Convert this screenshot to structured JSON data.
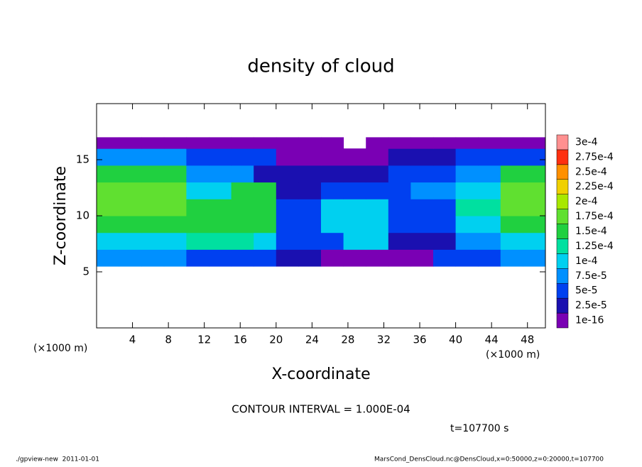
{
  "chart_data": {
    "type": "heatmap",
    "title": "density of cloud",
    "xlabel": "X-coordinate",
    "ylabel": "Z-coordinate",
    "x_unit": "(×1000 m)",
    "y_unit": "(×1000 m)",
    "xlim": [
      0,
      50
    ],
    "ylim": [
      0,
      20
    ],
    "xticks": [
      4,
      8,
      12,
      16,
      20,
      24,
      28,
      32,
      36,
      40,
      44,
      48
    ],
    "yticks": [
      5,
      10,
      15
    ],
    "x_edges": [
      0,
      2.5,
      5,
      7.5,
      10,
      12.5,
      15,
      17.5,
      20,
      22.5,
      25,
      27.5,
      30,
      32.5,
      35,
      37.5,
      40,
      42.5,
      45,
      47.5,
      50
    ],
    "z_edges": [
      5.5,
      7,
      8.5,
      10,
      11.5,
      13,
      14.5,
      16,
      17
    ],
    "values": [
      [
        8e-05,
        8e-05,
        8e-05,
        8e-05,
        7e-05,
        7e-05,
        7e-05,
        7e-05,
        3e-05,
        3e-05,
        2e-05,
        2e-05,
        2e-05,
        2e-05,
        2e-05,
        5e-05,
        5e-05,
        5e-05,
        8e-05,
        8e-05
      ],
      [
        0.00011,
        0.00011,
        0.00011,
        0.00011,
        0.00013,
        0.00013,
        0.00013,
        0.00012,
        5e-05,
        5e-05,
        5e-05,
        0.0001,
        0.0001,
        3e-05,
        3e-05,
        3e-05,
        8e-05,
        8e-05,
        0.0001,
        0.0001
      ],
      [
        0.00016,
        0.00016,
        0.00016,
        0.00016,
        0.00015,
        0.00015,
        0.00015,
        0.00015,
        5e-05,
        5e-05,
        0.00011,
        0.00011,
        0.00011,
        5e-05,
        6e-05,
        6e-05,
        0.00012,
        0.00012,
        0.00015,
        0.00015
      ],
      [
        0.00018,
        0.00018,
        0.00018,
        0.00018,
        0.00015,
        0.00015,
        0.00017,
        0.00017,
        7e-05,
        7e-05,
        0.00011,
        0.00011,
        0.00011,
        6e-05,
        6e-05,
        6e-05,
        0.00013,
        0.00013,
        0.00018,
        0.00018
      ],
      [
        0.00019,
        0.00019,
        0.00019,
        0.00019,
        0.0001,
        0.0001,
        0.00016,
        0.00016,
        4e-05,
        4e-05,
        6e-05,
        6e-05,
        6e-05,
        5e-05,
        9e-05,
        9e-05,
        0.00012,
        0.00012,
        0.00019,
        0.00019
      ],
      [
        0.00016,
        0.00016,
        0.00016,
        0.00016,
        9e-05,
        9e-05,
        8e-05,
        3e-05,
        3e-05,
        3e-05,
        4e-05,
        4e-05,
        4e-05,
        5e-05,
        5e-05,
        5e-05,
        8e-05,
        8e-05,
        0.00015,
        0.00015
      ],
      [
        9e-05,
        9e-05,
        9e-05,
        9e-05,
        5e-05,
        5e-05,
        5e-05,
        5e-05,
        2e-05,
        2e-05,
        2e-05,
        2e-05,
        2e-05,
        4e-05,
        4e-05,
        4e-05,
        7e-05,
        7e-05,
        7e-05,
        7e-05
      ],
      [
        1e-05,
        1e-05,
        1e-05,
        1e-05,
        1e-05,
        1e-05,
        1e-05,
        1e-05,
        1e-05,
        1e-05,
        1e-05,
        null,
        1e-05,
        1e-05,
        1e-05,
        1e-05,
        1e-05,
        1e-05,
        1e-05,
        1e-05
      ]
    ],
    "colorbar_ticks": [
      {
        "value": 1e-16,
        "label": "1e-16"
      },
      {
        "value": 2.5e-05,
        "label": "2.5e-5"
      },
      {
        "value": 5e-05,
        "label": "5e-5"
      },
      {
        "value": 7.5e-05,
        "label": "7.5e-5"
      },
      {
        "value": 0.0001,
        "label": "1e-4"
      },
      {
        "value": 0.000125,
        "label": "1.25e-4"
      },
      {
        "value": 0.00015,
        "label": "1.5e-4"
      },
      {
        "value": 0.000175,
        "label": "1.75e-4"
      },
      {
        "value": 0.0002,
        "label": "2e-4"
      },
      {
        "value": 0.000225,
        "label": "2.25e-4"
      },
      {
        "value": 0.00025,
        "label": "2.5e-4"
      },
      {
        "value": 0.000275,
        "label": "2.75e-4"
      },
      {
        "value": 0.0003,
        "label": "3e-4"
      }
    ],
    "colors": [
      "#7a00b4",
      "#1a10b0",
      "#0040f0",
      "#0090ff",
      "#00d0f0",
      "#00e0a0",
      "#20d040",
      "#60e030",
      "#a8e800",
      "#f0d000",
      "#ff9000",
      "#ff3010",
      "#ff9090"
    ],
    "contour_note": "CONTOUR INTERVAL = 1.000E-04",
    "time_note": "t=107700 s",
    "footer_left": "./gpview-new  2011-01-01",
    "footer_right": "MarsCond_DensCloud.nc@DensCloud,x=0:50000,z=0:20000,t=107700"
  }
}
